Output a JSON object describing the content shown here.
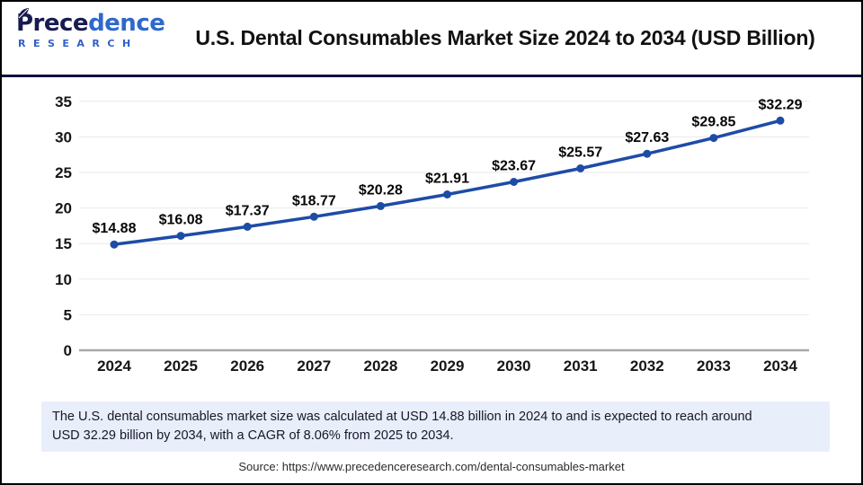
{
  "header": {
    "title": "U.S. Dental Consumables Market Size 2024 to 2034 (USD Billion)"
  },
  "logo": {
    "name_primary": "Prece",
    "name_secondary": "dence",
    "subtitle": "RESEARCH"
  },
  "chart_data": {
    "type": "line",
    "title": "U.S. Dental Consumables Market Size 2024 to 2034 (USD Billion)",
    "categories": [
      "2024",
      "2025",
      "2026",
      "2027",
      "2028",
      "2029",
      "2030",
      "2031",
      "2032",
      "2033",
      "2034"
    ],
    "values": [
      14.88,
      16.08,
      17.37,
      18.77,
      20.28,
      21.91,
      23.67,
      25.57,
      27.63,
      29.85,
      32.29
    ],
    "labels": [
      "$14.88",
      "$16.08",
      "$17.37",
      "$18.77",
      "$20.28",
      "$21.91",
      "$23.67",
      "$25.57",
      "$27.63",
      "$29.85",
      "$32.29"
    ],
    "xlabel": "",
    "ylabel": "",
    "ylim": [
      0,
      35
    ],
    "yticks": [
      0,
      5,
      10,
      15,
      20,
      25,
      30,
      35
    ],
    "grid": "horizontal",
    "legend": "none",
    "marker": "circle",
    "line_color": "#1d4ca6",
    "grid_color": "#e9e9e9",
    "axis_color": "#a9a9a9"
  },
  "footnote": {
    "line1": "The U.S. dental consumables market size was calculated at USD 14.88 billion in 2024 to and is expected to reach around",
    "line2": "USD 32.29 billion by 2034, with a CAGR of 8.06% from 2025 to 2034."
  },
  "source": {
    "text": "Source: https://www.precedenceresearch.com/dental-consumables-market"
  },
  "colors": {
    "header_divider": "#0e1238",
    "footnote_background": "#e8eefa",
    "logo_navy": "#181b4f",
    "logo_blue": "#2e68cc"
  }
}
